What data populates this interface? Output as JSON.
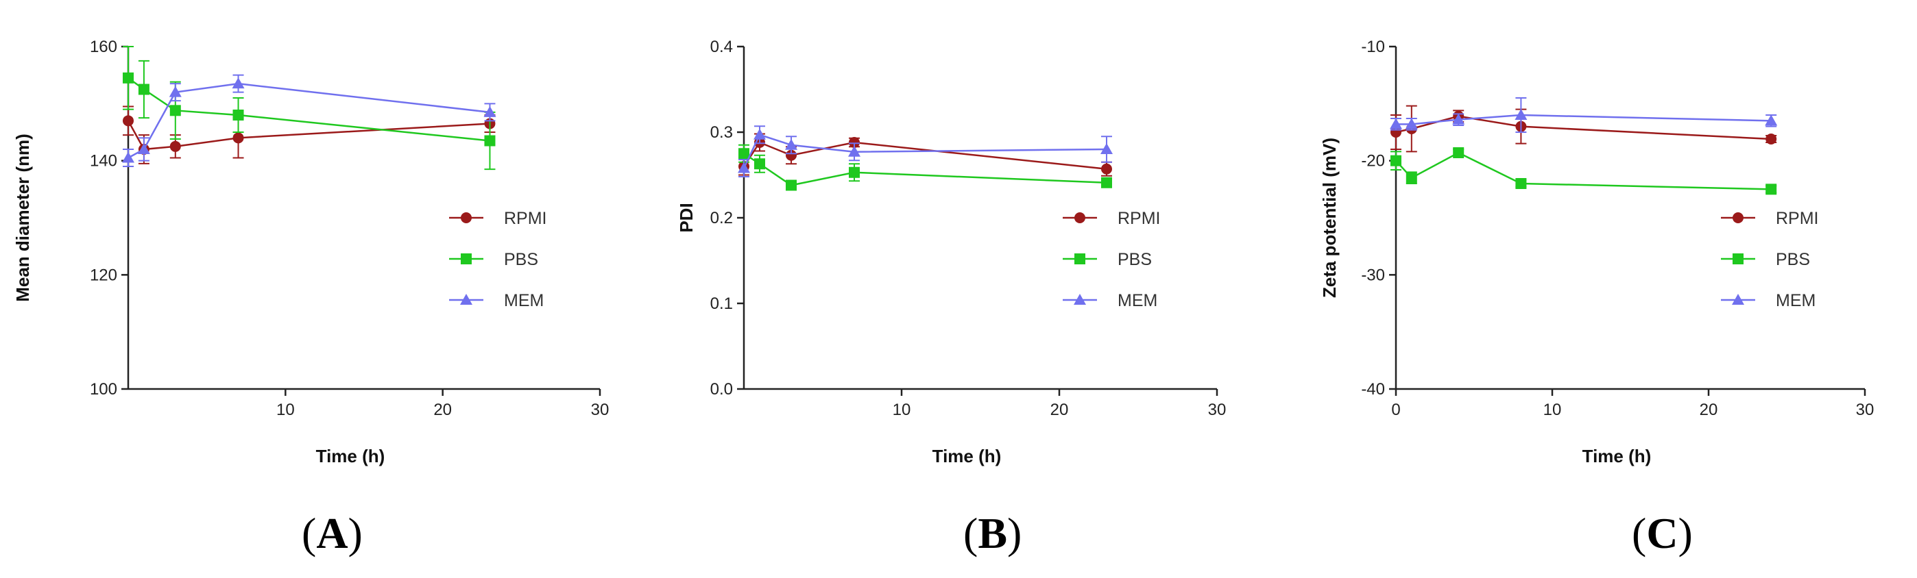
{
  "chart_data": [
    {
      "type": "line",
      "panel_label": "A",
      "xlabel": "Time (h)",
      "ylabel": "Mean diameter (nm)",
      "xlim": [
        0,
        30
      ],
      "ylim": [
        100,
        160
      ],
      "xticks": [
        10,
        20,
        30
      ],
      "yticks": [
        100,
        120,
        140,
        160
      ],
      "series": [
        {
          "name": "RPMI",
          "color": "#9b1a1a",
          "marker": "circle",
          "x": [
            0,
            1,
            3,
            7,
            23
          ],
          "y": [
            147,
            142,
            142.5,
            144,
            146.5
          ],
          "err": [
            2.5,
            2.5,
            2,
            3.5,
            1.5
          ]
        },
        {
          "name": "PBS",
          "color": "#1fc81f",
          "marker": "square",
          "x": [
            0,
            1,
            3,
            7,
            23
          ],
          "y": [
            154.5,
            152.5,
            148.8,
            148,
            143.5
          ],
          "err": [
            5.5,
            5,
            5,
            3,
            5
          ]
        },
        {
          "name": "MEM",
          "color": "#7070ee",
          "marker": "triangle",
          "x": [
            0,
            1,
            3,
            7,
            23
          ],
          "y": [
            140.5,
            142,
            152,
            153.5,
            148.5
          ],
          "err": [
            1.5,
            2,
            1.5,
            1.5,
            1.5
          ]
        }
      ]
    },
    {
      "type": "line",
      "panel_label": "B",
      "xlabel": "Time (h)",
      "ylabel": "PDI",
      "xlim": [
        0,
        30
      ],
      "ylim": [
        0.0,
        0.4
      ],
      "xticks": [
        10,
        20,
        30
      ],
      "yticks": [
        "0.0",
        "0.1",
        "0.2",
        "0.3",
        "0.4"
      ],
      "series": [
        {
          "name": "RPMI",
          "color": "#9b1a1a",
          "marker": "circle",
          "x": [
            0,
            1,
            3,
            7,
            23
          ],
          "y": [
            0.26,
            0.288,
            0.273,
            0.288,
            0.257
          ],
          "err": [
            0.01,
            0.01,
            0.01,
            0.005,
            0.008
          ]
        },
        {
          "name": "PBS",
          "color": "#1fc81f",
          "marker": "square",
          "x": [
            0,
            1,
            3,
            7,
            23
          ],
          "y": [
            0.275,
            0.263,
            0.238,
            0.253,
            0.241
          ],
          "err": [
            0.01,
            0.01,
            0.005,
            0.01,
            0.005
          ]
        },
        {
          "name": "MEM",
          "color": "#7070ee",
          "marker": "triangle",
          "x": [
            0,
            1,
            3,
            7,
            23
          ],
          "y": [
            0.258,
            0.297,
            0.285,
            0.277,
            0.28
          ],
          "err": [
            0.01,
            0.01,
            0.01,
            0.01,
            0.015
          ]
        }
      ]
    },
    {
      "type": "line",
      "panel_label": "C",
      "xlabel": "Time (h)",
      "ylabel": "Zeta potential (mV)",
      "xlim": [
        0,
        30
      ],
      "ylim": [
        -40,
        -10
      ],
      "xticks": [
        0,
        10,
        20,
        30
      ],
      "yticks": [
        -40,
        -30,
        -20,
        -10
      ],
      "series": [
        {
          "name": "RPMI",
          "color": "#9b1a1a",
          "marker": "circle",
          "x": [
            0,
            1,
            4,
            8,
            24
          ],
          "y": [
            -17.5,
            -17.2,
            -16.1,
            -17,
            -18.1
          ],
          "err": [
            1.5,
            2,
            0.5,
            1.5,
            0.3
          ]
        },
        {
          "name": "PBS",
          "color": "#1fc81f",
          "marker": "square",
          "x": [
            0,
            1,
            4,
            8,
            24
          ],
          "y": [
            -20,
            -21.5,
            -19.3,
            -22,
            -22.5
          ],
          "err": [
            0.8,
            0.5,
            0.3,
            0.3,
            0.3
          ]
        },
        {
          "name": "MEM",
          "color": "#7070ee",
          "marker": "triangle",
          "x": [
            0,
            1,
            4,
            8,
            24
          ],
          "y": [
            -16.8,
            -16.8,
            -16.4,
            -16,
            -16.5
          ],
          "err": [
            0.5,
            0.5,
            0.5,
            1.5,
            0.5
          ]
        }
      ]
    }
  ]
}
